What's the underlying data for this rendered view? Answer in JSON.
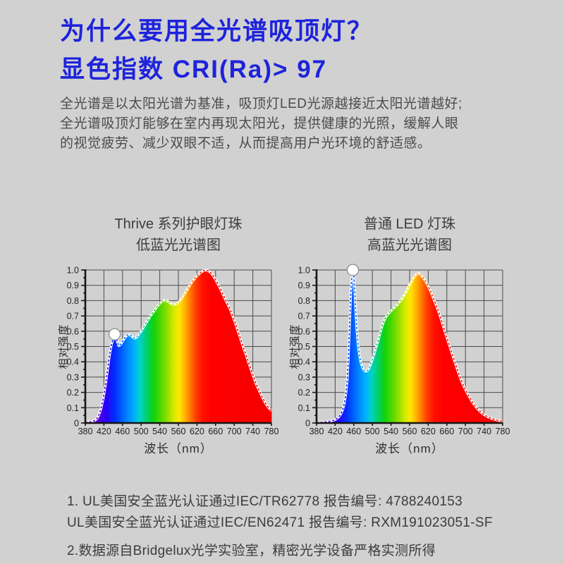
{
  "style": {
    "background": "#d1d1d1",
    "heading_color": "#1e23dc",
    "body_color": "#4b4b4b",
    "chart_title_color": "#3d3d3d",
    "grid_color": "#4a4a4a",
    "axis_color": "#161616",
    "tick_label_color": "#222222",
    "marker_fill": "#ffffff",
    "marker_stroke": "#8a8a8a",
    "curve_edge_color": "#ffffff"
  },
  "header": {
    "title_line1": "为什么要用全光谱吸顶灯？",
    "title_line2": "显色指数 CRI(Ra)> 97"
  },
  "intro": {
    "line1": "全光谱是以太阳光谱为基准，吸顶灯LED光源越接近太阳光谱越好;",
    "line2": "全光谱吸顶灯能够在室内再现太阳光，提供健康的光照，缓解人眼",
    "line3": "的视觉疲劳、减少双眼不适，从而提高用户光环境的舒适感。"
  },
  "spectrum_gradient": [
    {
      "nm": 380,
      "color": "#8a00b4"
    },
    {
      "nm": 405,
      "color": "#5a00e0"
    },
    {
      "nm": 425,
      "color": "#2800f8"
    },
    {
      "nm": 445,
      "color": "#0032ff"
    },
    {
      "nm": 465,
      "color": "#0074ff"
    },
    {
      "nm": 483,
      "color": "#00aaff"
    },
    {
      "nm": 497,
      "color": "#00d2cd"
    },
    {
      "nm": 511,
      "color": "#00d06e"
    },
    {
      "nm": 526,
      "color": "#0fd20f"
    },
    {
      "nm": 543,
      "color": "#55d800"
    },
    {
      "nm": 558,
      "color": "#99e000"
    },
    {
      "nm": 571,
      "color": "#d9ea00"
    },
    {
      "nm": 582,
      "color": "#ffe600"
    },
    {
      "nm": 594,
      "color": "#ffb300"
    },
    {
      "nm": 606,
      "color": "#ff7600"
    },
    {
      "nm": 618,
      "color": "#ff3c00"
    },
    {
      "nm": 633,
      "color": "#ff0f00"
    },
    {
      "nm": 652,
      "color": "#ff0000"
    },
    {
      "nm": 780,
      "color": "#f40000"
    }
  ],
  "chart_data": [
    {
      "type": "area",
      "name": "thrive-low-blue-spectrum",
      "title": "Thrive 系列护眼灯珠 低蓝光光谱图",
      "title_line1": "Thrive 系列护眼灯珠",
      "title_line2": "低蓝光光谱图",
      "xlabel": "波长（nm）",
      "ylabel": "相对强度",
      "xlim": [
        380,
        780
      ],
      "ylim": [
        0,
        1.0
      ],
      "grid": true,
      "x_tick_labels": [
        "380",
        "420",
        "460",
        "500",
        "540",
        "560",
        "620",
        "660",
        "700",
        "740",
        "780"
      ],
      "y_tick_labels": [
        "0",
        "0.1",
        "0.2",
        "0.3",
        "0.4",
        "0.5",
        "0.6",
        "0.7",
        "0.8",
        "0.9",
        "1.0"
      ],
      "marker_point": [
        443,
        0.58
      ],
      "points": [
        [
          380,
          0.004
        ],
        [
          390,
          0.007
        ],
        [
          398,
          0.013
        ],
        [
          404,
          0.025
        ],
        [
          409,
          0.05
        ],
        [
          414,
          0.095
        ],
        [
          419,
          0.165
        ],
        [
          424,
          0.26
        ],
        [
          428,
          0.35
        ],
        [
          432,
          0.44
        ],
        [
          436,
          0.51
        ],
        [
          440,
          0.555
        ],
        [
          443,
          0.573
        ],
        [
          446,
          0.565
        ],
        [
          449,
          0.53
        ],
        [
          452,
          0.505
        ],
        [
          455,
          0.51
        ],
        [
          459,
          0.528
        ],
        [
          463,
          0.548
        ],
        [
          467,
          0.565
        ],
        [
          471,
          0.576
        ],
        [
          475,
          0.578
        ],
        [
          479,
          0.57
        ],
        [
          483,
          0.558
        ],
        [
          487,
          0.554
        ],
        [
          491,
          0.562
        ],
        [
          495,
          0.58
        ],
        [
          500,
          0.6
        ],
        [
          507,
          0.635
        ],
        [
          514,
          0.67
        ],
        [
          520,
          0.7
        ],
        [
          526,
          0.725
        ],
        [
          532,
          0.75
        ],
        [
          538,
          0.775
        ],
        [
          544,
          0.793
        ],
        [
          550,
          0.803
        ],
        [
          556,
          0.798
        ],
        [
          562,
          0.785
        ],
        [
          568,
          0.776
        ],
        [
          574,
          0.776
        ],
        [
          580,
          0.79
        ],
        [
          586,
          0.81
        ],
        [
          592,
          0.838
        ],
        [
          598,
          0.868
        ],
        [
          604,
          0.898
        ],
        [
          610,
          0.925
        ],
        [
          616,
          0.948
        ],
        [
          622,
          0.968
        ],
        [
          628,
          0.984
        ],
        [
          634,
          0.996
        ],
        [
          639,
          1.0
        ],
        [
          645,
          0.993
        ],
        [
          651,
          0.978
        ],
        [
          657,
          0.952
        ],
        [
          663,
          0.92
        ],
        [
          669,
          0.885
        ],
        [
          675,
          0.848
        ],
        [
          682,
          0.8
        ],
        [
          691,
          0.745
        ],
        [
          698,
          0.69
        ],
        [
          705,
          0.63
        ],
        [
          712,
          0.565
        ],
        [
          719,
          0.5
        ],
        [
          726,
          0.44
        ],
        [
          733,
          0.375
        ],
        [
          740,
          0.315
        ],
        [
          747,
          0.255
        ],
        [
          754,
          0.21
        ],
        [
          761,
          0.165
        ],
        [
          768,
          0.125
        ],
        [
          774,
          0.1
        ],
        [
          780,
          0.08
        ]
      ]
    },
    {
      "type": "area",
      "name": "ordinary-led-high-blue-spectrum",
      "title": "普通 LED 灯珠 高蓝光光谱图",
      "title_line1": "普通 LED 灯珠",
      "title_line2": "高蓝光光谱图",
      "xlabel": "波长（nm）",
      "ylabel": "相对强度",
      "xlim": [
        380,
        780
      ],
      "ylim": [
        0,
        1.0
      ],
      "grid": true,
      "x_tick_labels": [
        "380",
        "420",
        "460",
        "500",
        "540",
        "560",
        "620",
        "660",
        "700",
        "740",
        "780"
      ],
      "y_tick_labels": [
        "0",
        "0.1",
        "0.2",
        "0.3",
        "0.4",
        "0.5",
        "0.6",
        "0.7",
        "0.8",
        "0.9",
        "1.0"
      ],
      "marker_point": [
        458,
        1.0
      ],
      "points": [
        [
          380,
          0.003
        ],
        [
          392,
          0.005
        ],
        [
          402,
          0.008
        ],
        [
          410,
          0.012
        ],
        [
          417,
          0.018
        ],
        [
          423,
          0.027
        ],
        [
          428,
          0.04
        ],
        [
          432,
          0.058
        ],
        [
          436,
          0.085
        ],
        [
          440,
          0.13
        ],
        [
          443,
          0.19
        ],
        [
          446,
          0.28
        ],
        [
          448,
          0.4
        ],
        [
          450,
          0.55
        ],
        [
          452,
          0.72
        ],
        [
          454,
          0.87
        ],
        [
          456,
          0.96
        ],
        [
          458,
          1.0
        ],
        [
          460,
          0.965
        ],
        [
          462,
          0.87
        ],
        [
          464,
          0.75
        ],
        [
          466,
          0.63
        ],
        [
          469,
          0.52
        ],
        [
          472,
          0.45
        ],
        [
          475,
          0.4
        ],
        [
          478,
          0.37
        ],
        [
          481,
          0.35
        ],
        [
          484,
          0.34
        ],
        [
          487,
          0.338
        ],
        [
          490,
          0.344
        ],
        [
          493,
          0.36
        ],
        [
          497,
          0.39
        ],
        [
          501,
          0.425
        ],
        [
          505,
          0.462
        ],
        [
          509,
          0.503
        ],
        [
          513,
          0.547
        ],
        [
          517,
          0.592
        ],
        [
          521,
          0.635
        ],
        [
          526,
          0.675
        ],
        [
          531,
          0.702
        ],
        [
          537,
          0.723
        ],
        [
          543,
          0.741
        ],
        [
          549,
          0.759
        ],
        [
          555,
          0.779
        ],
        [
          561,
          0.802
        ],
        [
          567,
          0.828
        ],
        [
          573,
          0.862
        ],
        [
          579,
          0.898
        ],
        [
          585,
          0.932
        ],
        [
          590,
          0.957
        ],
        [
          595,
          0.973
        ],
        [
          600,
          0.978
        ],
        [
          605,
          0.963
        ],
        [
          611,
          0.942
        ],
        [
          617,
          0.912
        ],
        [
          623,
          0.875
        ],
        [
          629,
          0.832
        ],
        [
          635,
          0.785
        ],
        [
          641,
          0.738
        ],
        [
          647,
          0.685
        ],
        [
          653,
          0.625
        ],
        [
          659,
          0.568
        ],
        [
          665,
          0.512
        ],
        [
          671,
          0.455
        ],
        [
          677,
          0.4
        ],
        [
          683,
          0.345
        ],
        [
          689,
          0.295
        ],
        [
          695,
          0.25
        ],
        [
          701,
          0.212
        ],
        [
          707,
          0.178
        ],
        [
          713,
          0.146
        ],
        [
          719,
          0.119
        ],
        [
          725,
          0.097
        ],
        [
          731,
          0.077
        ],
        [
          737,
          0.061
        ],
        [
          743,
          0.049
        ],
        [
          749,
          0.039
        ],
        [
          755,
          0.031
        ],
        [
          762,
          0.024
        ],
        [
          769,
          0.018
        ],
        [
          776,
          0.014
        ],
        [
          780,
          0.012
        ]
      ]
    }
  ],
  "footnotes": {
    "line1": "1. UL美国安全蓝光认证通过IEC/TR62778  报告编号: 4788240153",
    "line2": "UL美国安全蓝光认证通过IEC/EN62471 报告编号: RXM191023051-SF",
    "line3": "2.数据源自Bridgelux光学实验室，精密光学设备严格实测所得"
  }
}
